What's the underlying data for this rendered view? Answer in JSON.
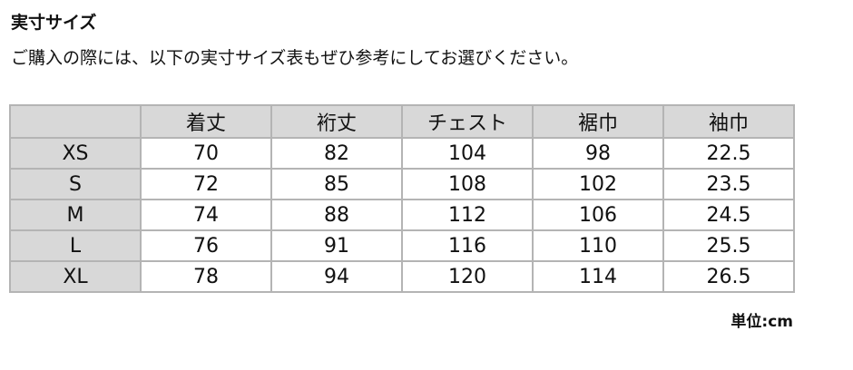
{
  "title": "実寸サイズ",
  "subtitle": "ご購入の際には、以下の実寸サイズ表もぜひ参考にしてお選びください。",
  "table": {
    "headers": [
      "",
      "着丈",
      "裄丈",
      "チェスト",
      "裾巾",
      "袖巾"
    ],
    "rows": [
      [
        "XS",
        "70",
        "82",
        "104",
        "98",
        "22.5"
      ],
      [
        "S",
        "72",
        "85",
        "108",
        "102",
        "23.5"
      ],
      [
        "M",
        "74",
        "88",
        "112",
        "106",
        "24.5"
      ],
      [
        "L",
        "76",
        "91",
        "116",
        "110",
        "25.5"
      ],
      [
        "XL",
        "78",
        "94",
        "120",
        "114",
        "26.5"
      ]
    ]
  },
  "unit": "単位:cm"
}
